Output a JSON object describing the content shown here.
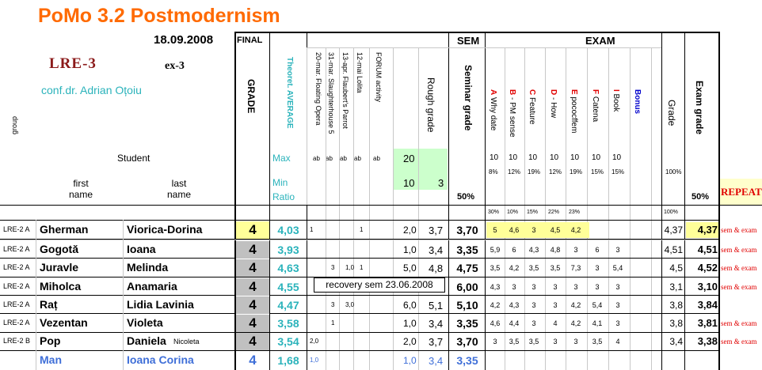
{
  "header": {
    "title": "PoMo 3.2 Postmodernism",
    "date": "18.09.2008",
    "final_label": "FINAL",
    "course_code": "LRE-3",
    "exam_code": "ex-3",
    "teacher": "conf.dr. Adrian Oțoiu",
    "group_label": "group",
    "student_label": "Student",
    "first_label_1": "first",
    "first_label_2": "name",
    "last_label_1": "last",
    "last_label_2": "name",
    "grade_label": "GRADE",
    "theoret_label": "Theoret. AVERAGE",
    "max_label": "Max",
    "min_label": "Min",
    "ratio_label": "Ratio",
    "sem_label": "SEM",
    "exam_label": "EXAM",
    "seminar_grade_label": "Seminar grade",
    "rough_grade_label": "Rough grade",
    "exam_grade_label": "Exam grade",
    "exam_sub_grade_label": "Grade",
    "pct50_a": "50%",
    "pct50_b": "50%",
    "repeat_label": "REPEAT"
  },
  "sem_columns": [
    {
      "label": "20-mar.  Floating Opera",
      "ab": "ab"
    },
    {
      "label": "31-mar.  Slaughterhouse 5",
      "ab": "ab"
    },
    {
      "label": "13-apr.  Flaubert's Parrot",
      "ab": "ab"
    },
    {
      "label": "12-mai  Lolita",
      "ab": "ab"
    },
    {
      "label": "FORUM activity",
      "ab": "ab"
    }
  ],
  "rough": {
    "max": "20",
    "min": "10",
    "ratio": "3"
  },
  "exam_columns": [
    {
      "label": "A Why date",
      "max": "10",
      "pct": "8%",
      "weight": "30%",
      "color": "#e00000"
    },
    {
      "label": "B - PM sense",
      "max": "10",
      "pct": "12%",
      "weight": "10%",
      "color": "#e00000"
    },
    {
      "label": "C Feature",
      "max": "10",
      "pct": "19%",
      "weight": "15%",
      "color": "#e00000"
    },
    {
      "label": "D - How",
      "max": "10",
      "pct": "12%",
      "weight": "22%",
      "color": "#e00000"
    },
    {
      "label": "E pococffem",
      "max": "10",
      "pct": "19%",
      "weight": "23%",
      "color": "#e00000"
    },
    {
      "label": "F Catena",
      "max": "10",
      "pct": "15%",
      "weight": "",
      "color": "#e00000"
    },
    {
      "label": "I Book",
      "max": "10",
      "pct": "15%",
      "weight": "",
      "color": "#e00000"
    },
    {
      "label": "Bonus",
      "max": "",
      "pct": "",
      "weight": "",
      "color": "#0000cc"
    }
  ],
  "exam_grade_pct": "100%",
  "exam_grade_pct2": "100%",
  "recovery_note": "recovery sem 23.06.2008",
  "students": [
    {
      "group": "LRE-2  A",
      "first": "Gherman",
      "last": "Viorica-Dorina",
      "last_extra": "",
      "grade": "4",
      "avg": "4,03",
      "sem": [
        "1",
        "",
        "",
        "1",
        ""
      ],
      "rough_a": "2,0",
      "rough_b": "3,7",
      "seminar": "3,70",
      "exam": [
        "5",
        "4,6",
        "3",
        "4,5",
        "4,2",
        "",
        "",
        ""
      ],
      "exam_sub": "4,37",
      "exam_grade": "4,37",
      "repeat": "sem & exam",
      "highlight": true,
      "style": "normal"
    },
    {
      "group": "LRE-2  A",
      "first": "Gogotă",
      "last": "Ioana",
      "last_extra": "",
      "grade": "4",
      "avg": "3,93",
      "sem": [
        "",
        "",
        "",
        "",
        ""
      ],
      "rough_a": "1,0",
      "rough_b": "3,4",
      "seminar": "3,35",
      "exam": [
        "5,9",
        "6",
        "4,3",
        "4,8",
        "3",
        "6",
        "3",
        ""
      ],
      "exam_sub": "4,51",
      "exam_grade": "4,51",
      "repeat": "sem & exam",
      "highlight": false,
      "style": "normal"
    },
    {
      "group": "LRE-2  A",
      "first": "Juravle",
      "last": "Melinda",
      "last_extra": "",
      "grade": "4",
      "avg": "4,63",
      "sem": [
        "",
        "3",
        "1,0",
        "1",
        ""
      ],
      "rough_a": "5,0",
      "rough_b": "4,8",
      "seminar": "4,75",
      "exam": [
        "3,5",
        "4,2",
        "3,5",
        "3,5",
        "7,3",
        "3",
        "5,4",
        ""
      ],
      "exam_sub": "4,5",
      "exam_grade": "4,52",
      "repeat": "sem & exam",
      "highlight": false,
      "style": "normal"
    },
    {
      "group": "LRE-2  A",
      "first": "Miholca",
      "last": "Anamaria",
      "last_extra": "",
      "grade": "4",
      "avg": "4,55",
      "sem": [
        "",
        "",
        "",
        "",
        ""
      ],
      "rough_a": "",
      "rough_b": "",
      "seminar": "6,00",
      "exam": [
        "4,3",
        "3",
        "3",
        "3",
        "3",
        "3",
        "3",
        ""
      ],
      "exam_sub": "3,1",
      "exam_grade": "3,10",
      "repeat": "sem & exam",
      "highlight": false,
      "style": "normal"
    },
    {
      "group": "LRE-2  A",
      "first": "Raț",
      "last": "Lidia Lavinia",
      "last_extra": "",
      "grade": "4",
      "avg": "4,47",
      "sem": [
        "",
        "3",
        "3,0",
        "",
        ""
      ],
      "rough_a": "6,0",
      "rough_b": "5,1",
      "seminar": "5,10",
      "exam": [
        "4,2",
        "4,3",
        "3",
        "3",
        "4,2",
        "5,4",
        "3",
        ""
      ],
      "exam_sub": "3,8",
      "exam_grade": "3,84",
      "repeat": "",
      "highlight": false,
      "style": "normal"
    },
    {
      "group": "LRE-2  A",
      "first": "Vezentan",
      "last": "Violeta",
      "last_extra": "",
      "grade": "4",
      "avg": "3,58",
      "sem": [
        "",
        "1",
        "",
        "",
        ""
      ],
      "rough_a": "1,0",
      "rough_b": "3,4",
      "seminar": "3,35",
      "exam": [
        "4,6",
        "4,4",
        "3",
        "4",
        "4,2",
        "4,1",
        "3",
        ""
      ],
      "exam_sub": "3,8",
      "exam_grade": "3,81",
      "repeat": "sem & exam",
      "highlight": false,
      "style": "normal"
    },
    {
      "group": "LRE-2  B",
      "first": "Pop",
      "last": "Daniela",
      "last_extra": "Nicoleta",
      "grade": "4",
      "avg": "3,54",
      "sem": [
        "2,0",
        "",
        "",
        "",
        ""
      ],
      "rough_a": "2,0",
      "rough_b": "3,7",
      "seminar": "3,70",
      "exam": [
        "3",
        "3,5",
        "3,5",
        "3",
        "3",
        "3,5",
        "4",
        ""
      ],
      "exam_sub": "3,4",
      "exam_grade": "3,38",
      "repeat": "sem & exam",
      "highlight": false,
      "style": "normal"
    },
    {
      "group": "",
      "first": "Man",
      "last": "Ioana Corina",
      "last_extra": "",
      "grade": "4",
      "avg": "1,68",
      "sem": [
        "1,0",
        "",
        "",
        "",
        ""
      ],
      "rough_a": "1,0",
      "rough_b": "3,4",
      "seminar": "3,35",
      "exam": [
        "",
        "",
        "",
        "",
        "",
        "",
        "",
        ""
      ],
      "exam_sub": "",
      "exam_grade": "",
      "repeat": "",
      "highlight": false,
      "style": "blue"
    }
  ],
  "colors": {
    "title": "#ff6a00",
    "teal": "#2bb3bb",
    "grade_bg": "#c0c0c0",
    "yellow": "#ffff99",
    "green": "#ccffcc",
    "repeat_bg": "#ffffcc",
    "course_code": "#8b1a1a"
  }
}
